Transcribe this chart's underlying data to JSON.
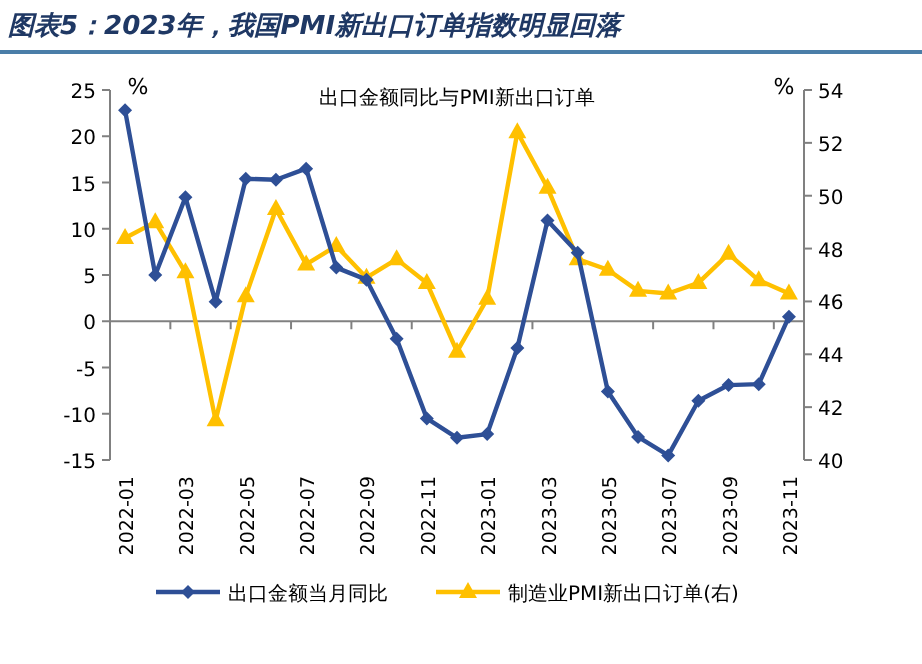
{
  "chart_data": {
    "type": "line",
    "title": "图表5：2023年，我国PMI新出口订单指数明显回落",
    "subtitle": "出口金额同比与PMI新出口订单",
    "ylabel": "%",
    "y2label": "%",
    "categories": [
      "2022-01",
      null,
      "2022-03",
      null,
      "2022-05",
      null,
      "2022-07",
      null,
      "2022-09",
      null,
      "2022-11",
      null,
      "2023-01",
      null,
      "2023-03",
      null,
      "2023-05",
      null,
      "2023-07",
      null,
      "2023-09",
      null,
      "2023-11"
    ],
    "ylim": [
      -15,
      25
    ],
    "yticks": [
      -15,
      -10,
      -5,
      0,
      5,
      10,
      15,
      20,
      25
    ],
    "y2lim": [
      40,
      54
    ],
    "y2ticks": [
      40,
      42,
      44,
      46,
      48,
      50,
      52,
      54
    ],
    "legend": "bottom",
    "line_style": "solid",
    "series": [
      {
        "name": "出口金额当月同比",
        "color": "#2e4f96",
        "marker": "diamond",
        "values": [
          22.8,
          5.0,
          13.4,
          2.1,
          15.4,
          15.3,
          16.5,
          5.8,
          4.5,
          -1.9,
          -10.5,
          -12.6,
          -12.2,
          -2.9,
          10.9,
          7.4,
          -7.6,
          -12.5,
          -14.5,
          -8.6,
          -6.9,
          -6.8,
          0.5
        ]
      },
      {
        "name": "制造业PMI新出口订单(右)",
        "color": "#ffc000",
        "marker": "triangle",
        "axis": "y2",
        "values": [
          48.4,
          49.0,
          47.1,
          41.5,
          46.2,
          49.5,
          47.4,
          48.1,
          46.9,
          47.6,
          46.7,
          44.1,
          46.1,
          52.4,
          50.3,
          47.6,
          47.2,
          46.4,
          46.3,
          46.7,
          47.8,
          46.8,
          46.3
        ]
      }
    ]
  }
}
